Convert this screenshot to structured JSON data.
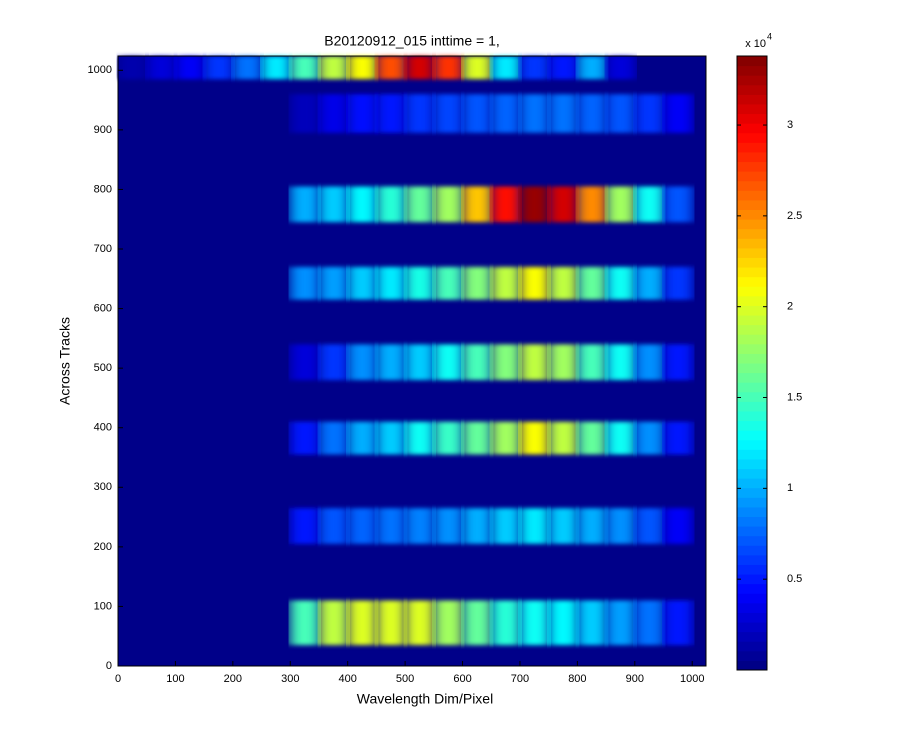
{
  "chart_data": {
    "type": "heatmap",
    "title": "B20120912_015 inttime = 1,",
    "xlabel": "Wavelength Dim/Pixel",
    "ylabel": "Across Tracks",
    "xlim": [
      0,
      1024
    ],
    "ylim": [
      0,
      1024
    ],
    "xticks": [
      0,
      100,
      200,
      300,
      400,
      500,
      600,
      700,
      800,
      900,
      1000
    ],
    "yticks": [
      0,
      100,
      200,
      300,
      400,
      500,
      600,
      700,
      800,
      900,
      1000
    ],
    "background": 300,
    "x": [
      25,
      75,
      125,
      175,
      225,
      275,
      325,
      375,
      425,
      475,
      525,
      575,
      625,
      675,
      725,
      775,
      825,
      875,
      925,
      975
    ],
    "rows": [
      {
        "ylim": [
          35,
          110
        ],
        "values": [
          null,
          null,
          null,
          null,
          null,
          null,
          15000,
          19000,
          20000,
          20000,
          20000,
          18000,
          16000,
          14000,
          13000,
          12500,
          11000,
          9500,
          8000,
          5000
        ]
      },
      {
        "ylim": [
          205,
          265
        ],
        "values": [
          null,
          null,
          null,
          null,
          null,
          null,
          5000,
          7000,
          7500,
          8000,
          8500,
          9000,
          10000,
          11000,
          12000,
          11000,
          10000,
          9000,
          7000,
          4000
        ]
      },
      {
        "ylim": [
          355,
          410
        ],
        "values": [
          null,
          null,
          null,
          null,
          null,
          null,
          5000,
          8000,
          10000,
          11000,
          13000,
          14500,
          16000,
          18000,
          21000,
          19000,
          16000,
          13000,
          9000,
          5000
        ]
      },
      {
        "ylim": [
          480,
          540
        ],
        "values": [
          null,
          null,
          null,
          null,
          null,
          null,
          3000,
          6000,
          9000,
          10000,
          11000,
          13000,
          15000,
          17000,
          19000,
          18000,
          15000,
          13000,
          9000,
          5000
        ]
      },
      {
        "ylim": [
          615,
          670
        ],
        "values": [
          null,
          null,
          null,
          null,
          null,
          null,
          9000,
          9500,
          11000,
          12000,
          13500,
          15000,
          17000,
          19000,
          21000,
          19000,
          16000,
          13000,
          10000,
          6000
        ]
      },
      {
        "ylim": [
          745,
          805
        ],
        "values": [
          null,
          null,
          null,
          null,
          null,
          null,
          10000,
          11000,
          12500,
          14000,
          16000,
          18000,
          23000,
          29000,
          33000,
          31000,
          25000,
          18000,
          13000,
          7000
        ]
      },
      {
        "ylim": [
          895,
          960
        ],
        "values": [
          null,
          null,
          null,
          null,
          null,
          null,
          2000,
          3500,
          4500,
          5000,
          6000,
          6500,
          7000,
          7500,
          8000,
          8000,
          7500,
          7000,
          6000,
          4000
        ]
      },
      {
        "ylim": [
          985,
          1024
        ],
        "values": [
          1500,
          3000,
          4000,
          6000,
          8000,
          12000,
          15000,
          19000,
          21000,
          27000,
          31000,
          28000,
          20000,
          12000,
          6000,
          5000,
          10000,
          3000,
          null,
          null
        ]
      }
    ],
    "colorbar": {
      "clim": [
        0,
        33800
      ],
      "ticks": [
        {
          "value": 5000,
          "label": "0.5"
        },
        {
          "value": 10000,
          "label": "1"
        },
        {
          "value": 15000,
          "label": "1.5"
        },
        {
          "value": 20000,
          "label": "2"
        },
        {
          "value": 25000,
          "label": "2.5"
        },
        {
          "value": 30000,
          "label": "3"
        }
      ],
      "exponent_base": "x 10",
      "exponent": "4"
    }
  }
}
